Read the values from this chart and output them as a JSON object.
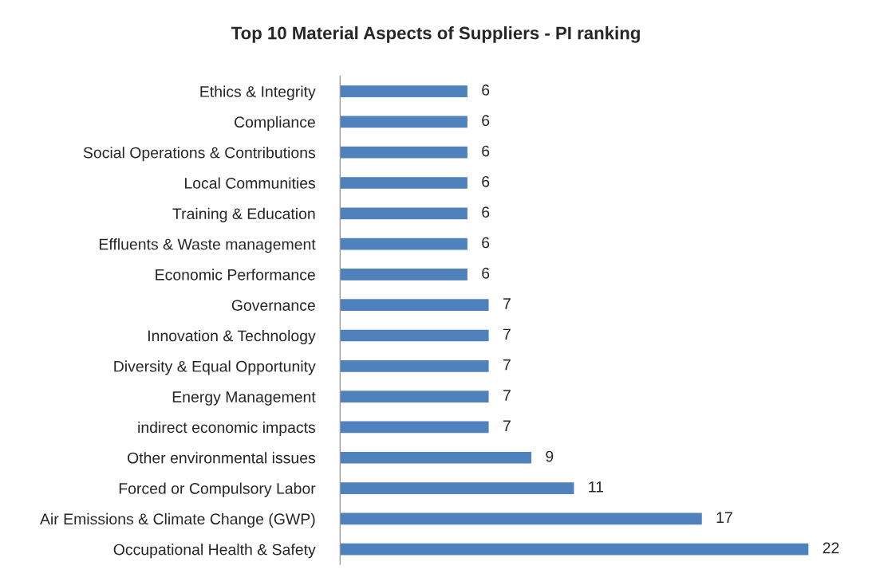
{
  "chart_data": {
    "type": "bar",
    "orientation": "horizontal",
    "title": "Top 10 Material Aspects of Suppliers - PI ranking",
    "categories": [
      "Ethics & Integrity",
      "Compliance",
      "Social Operations & Contributions",
      "Local Communities",
      "Training & Education",
      "Effluents & Waste management",
      "Economic Performance",
      "Governance",
      "Innovation & Technology",
      "Diversity & Equal Opportunity",
      "Energy Management",
      "indirect economic impacts",
      "Other environmental issues",
      "Forced or Compulsory Labor",
      "Air Emissions & Climate Change (GWP)",
      "Occupational Health & Safety"
    ],
    "values": [
      6,
      6,
      6,
      6,
      6,
      6,
      6,
      7,
      7,
      7,
      7,
      7,
      9,
      11,
      17,
      22
    ],
    "color": "#4f81bd",
    "data_labels": true,
    "legend": false,
    "tick_labels": "y"
  }
}
